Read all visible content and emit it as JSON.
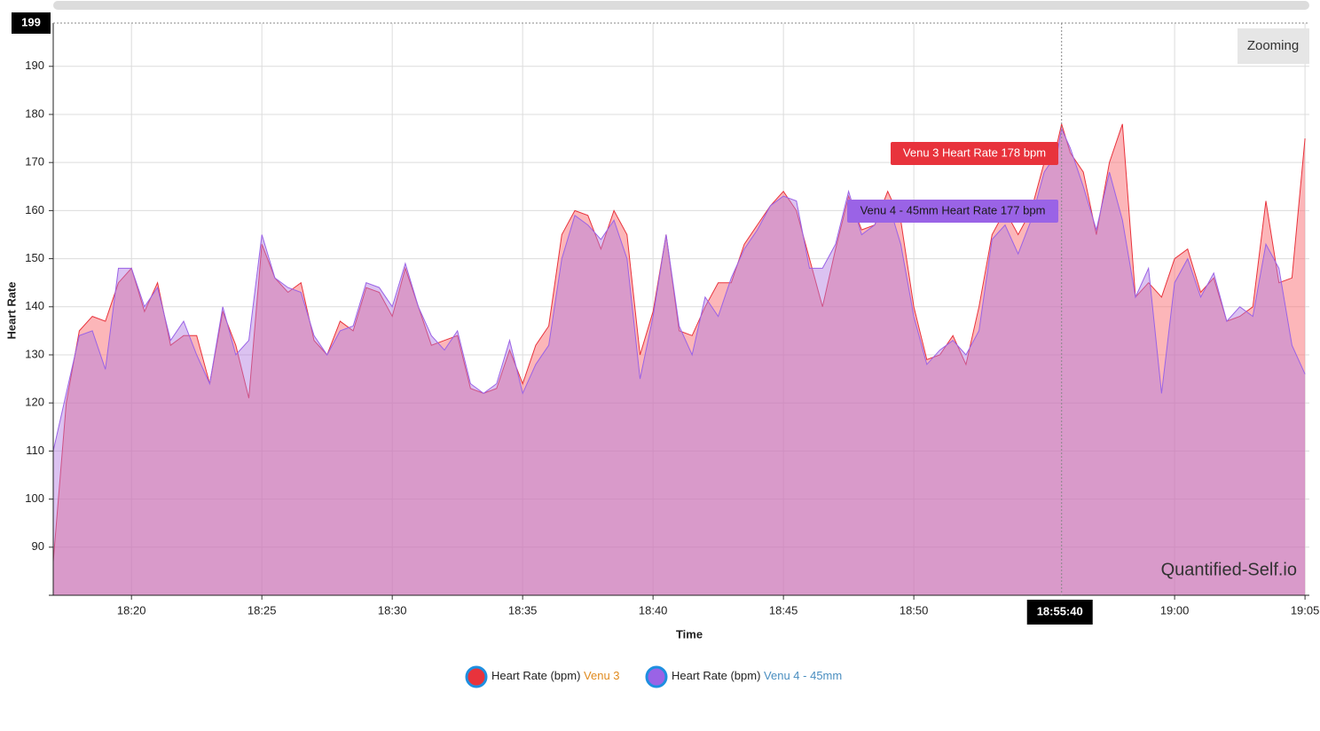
{
  "chart_data": {
    "type": "area",
    "y_label": "Heart Rate",
    "x_label": "Time",
    "button": "Zooming",
    "watermark": "Quantified-Self.io",
    "crosshair": {
      "x": "18:55:40",
      "y": 199
    },
    "x": [
      "18:17:00",
      "18:17:30",
      "18:18:00",
      "18:18:30",
      "18:19:00",
      "18:19:30",
      "18:20:00",
      "18:20:30",
      "18:21:00",
      "18:21:30",
      "18:22:00",
      "18:22:30",
      "18:23:00",
      "18:23:30",
      "18:24:00",
      "18:24:30",
      "18:25:00",
      "18:25:30",
      "18:26:00",
      "18:26:30",
      "18:27:00",
      "18:27:30",
      "18:28:00",
      "18:28:30",
      "18:29:00",
      "18:29:30",
      "18:30:00",
      "18:30:30",
      "18:31:00",
      "18:31:30",
      "18:32:00",
      "18:32:30",
      "18:33:00",
      "18:33:30",
      "18:34:00",
      "18:34:30",
      "18:35:00",
      "18:35:30",
      "18:36:00",
      "18:36:30",
      "18:37:00",
      "18:37:30",
      "18:38:00",
      "18:38:30",
      "18:39:00",
      "18:39:30",
      "18:40:00",
      "18:40:30",
      "18:41:00",
      "18:41:30",
      "18:42:00",
      "18:42:30",
      "18:43:00",
      "18:43:30",
      "18:44:00",
      "18:44:30",
      "18:45:00",
      "18:45:30",
      "18:46:00",
      "18:46:30",
      "18:47:00",
      "18:47:30",
      "18:48:00",
      "18:48:30",
      "18:49:00",
      "18:49:30",
      "18:50:00",
      "18:50:30",
      "18:51:00",
      "18:51:30",
      "18:52:00",
      "18:52:30",
      "18:53:00",
      "18:53:30",
      "18:54:00",
      "18:54:30",
      "18:55:00",
      "18:55:30",
      "18:55:40",
      "18:56:00",
      "18:56:30",
      "18:57:00",
      "18:57:30",
      "18:58:00",
      "18:58:30",
      "18:59:00",
      "18:59:30",
      "19:00:00",
      "19:00:30",
      "19:01:00",
      "19:01:30",
      "19:02:00",
      "19:02:30",
      "19:03:00",
      "19:03:30",
      "19:04:00",
      "19:04:30",
      "19:05:00"
    ],
    "series": [
      {
        "name": "Heart Rate (bpm)",
        "device": "Venu 3",
        "color": "#e8333c",
        "device_color": "#e08a1e",
        "values": [
          87,
          120,
          135,
          138,
          137,
          145,
          148,
          139,
          145,
          132,
          134,
          134,
          124,
          139,
          132,
          121,
          153,
          146,
          143,
          145,
          133,
          130,
          137,
          135,
          144,
          143,
          138,
          148,
          140,
          132,
          133,
          134,
          123,
          122,
          123,
          131,
          124,
          132,
          136,
          155,
          160,
          159,
          152,
          160,
          155,
          130,
          139,
          155,
          135,
          134,
          140,
          145,
          145,
          153,
          157,
          161,
          164,
          160,
          150,
          140,
          152,
          163,
          156,
          157,
          164,
          158,
          140,
          129,
          130,
          134,
          128,
          140,
          155,
          160,
          155,
          160,
          170,
          174,
          178,
          172,
          168,
          155,
          170,
          178,
          142,
          145,
          142,
          150,
          152,
          143,
          146,
          137,
          138,
          140,
          162,
          145,
          146,
          175
        ]
      },
      {
        "name": "Heart Rate (bpm)",
        "device": "Venu 4 - 45mm",
        "color": "#9a63e6",
        "device_color": "#4a8ec0",
        "values": [
          110,
          122,
          134,
          135,
          127,
          148,
          148,
          140,
          144,
          133,
          137,
          130,
          124,
          140,
          130,
          133,
          155,
          146,
          144,
          143,
          134,
          130,
          135,
          136,
          145,
          144,
          140,
          149,
          140,
          134,
          131,
          135,
          124,
          122,
          124,
          133,
          122,
          128,
          132,
          150,
          159,
          157,
          154,
          158,
          150,
          125,
          138,
          155,
          136,
          130,
          142,
          138,
          146,
          152,
          156,
          161,
          163,
          162,
          148,
          148,
          153,
          164,
          155,
          157,
          162,
          153,
          138,
          128,
          131,
          133,
          130,
          135,
          154,
          157,
          151,
          158,
          168,
          172,
          177,
          173,
          165,
          156,
          168,
          158,
          142,
          148,
          122,
          145,
          150,
          142,
          147,
          137,
          140,
          138,
          153,
          148,
          132,
          126
        ]
      }
    ],
    "annotations": [
      {
        "text": "Venu 3 Heart Rate 178 bpm",
        "series": 0
      },
      {
        "text": "Venu 4 - 45mm Heart Rate 177 bpm",
        "series": 1
      }
    ],
    "xlim": [
      "18:17:00",
      "19:05:10"
    ],
    "xticks": [
      "18:20",
      "18:25",
      "18:30",
      "18:35",
      "18:40",
      "18:45",
      "18:50",
      "19:00",
      "19:05"
    ],
    "ylim": [
      80,
      199
    ],
    "yticks": [
      90,
      100,
      110,
      120,
      130,
      140,
      150,
      160,
      170,
      180,
      190
    ],
    "grid": true
  }
}
